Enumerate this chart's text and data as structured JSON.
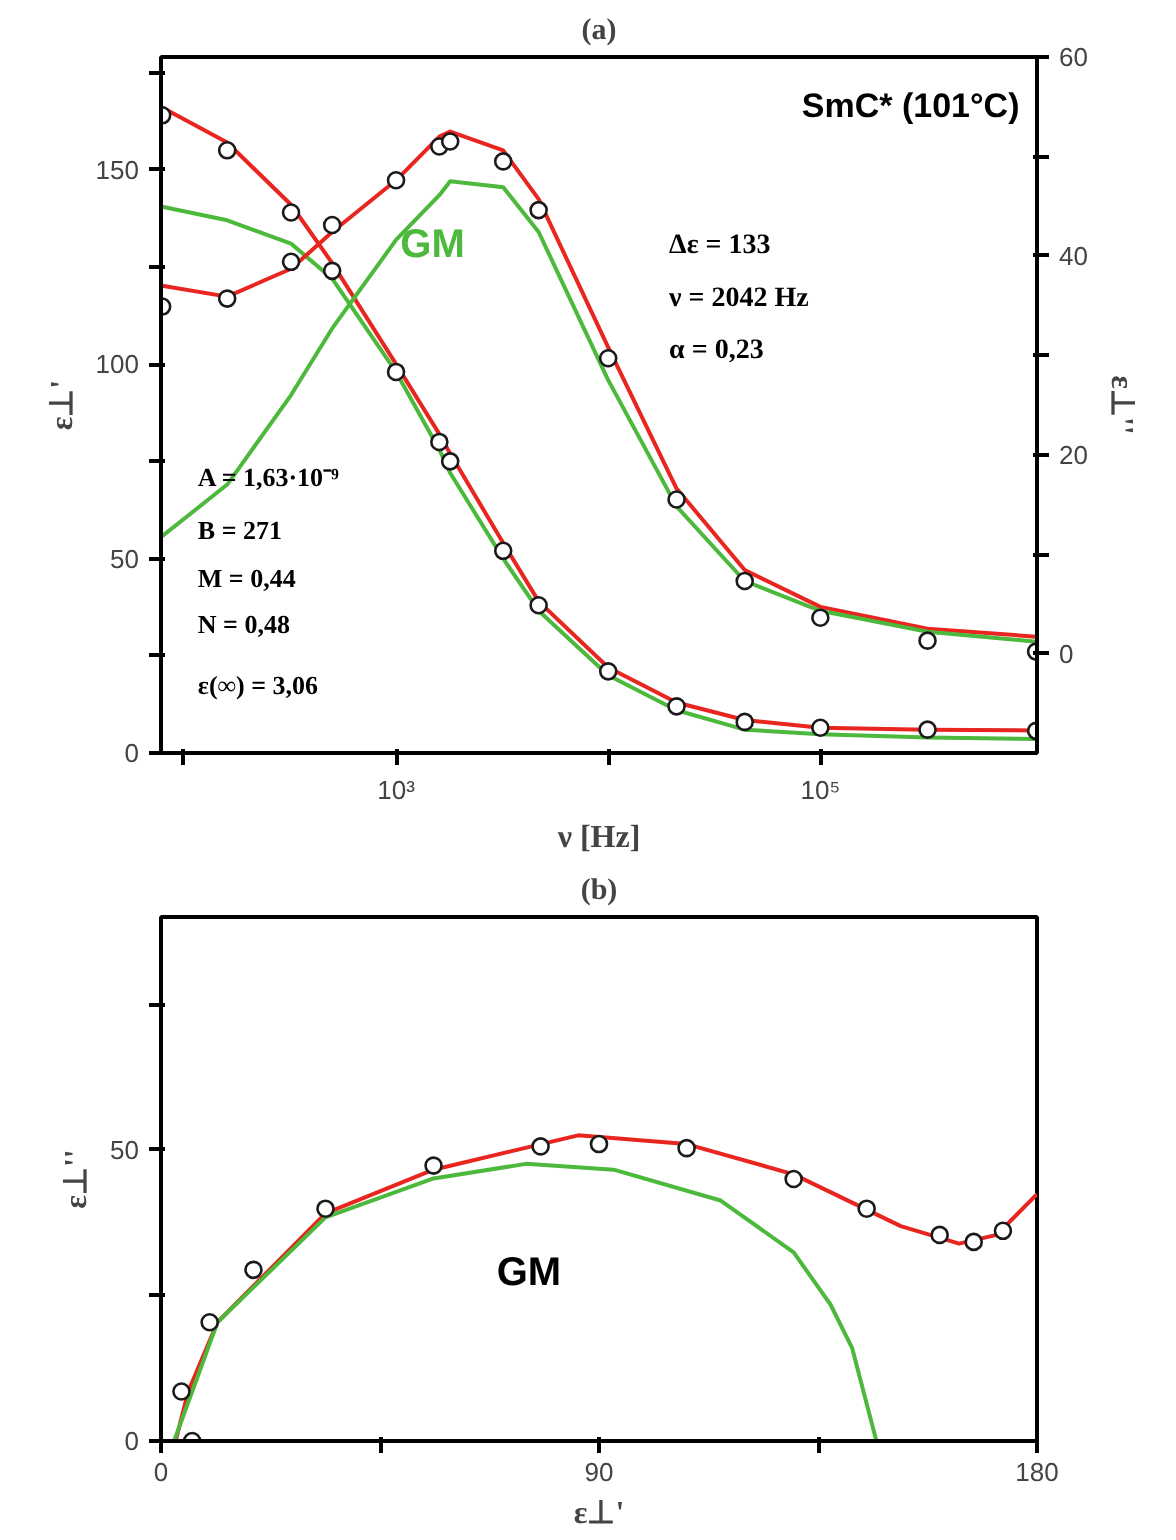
{
  "chart_data": [
    {
      "type": "line",
      "title": "(a)",
      "xlabel": "ν [Hz]",
      "ylabel": "ε⊥'",
      "y2label": "ε⊥''",
      "log": "x",
      "grid": false,
      "x": [
        79,
        160,
        320,
        500,
        1000,
        1600,
        1800,
        3200,
        4700,
        10000,
        21000,
        44000,
        100000,
        320000,
        1040000
      ],
      "xlim": [
        78,
        1050000
      ],
      "xticks": [
        {
          "value": 100,
          "label": null
        },
        {
          "value": 1000,
          "label": "10³"
        },
        {
          "value": 10000,
          "label": null
        },
        {
          "value": 100000,
          "label": "10⁵"
        }
      ],
      "ylim": [
        0,
        179
      ],
      "yticks": [
        0,
        {
          "value": 25,
          "label": null
        },
        50,
        {
          "value": 75,
          "label": null
        },
        100,
        {
          "value": 125,
          "label": null
        },
        150,
        {
          "value": 175,
          "label": null
        }
      ],
      "y2lim": [
        -10,
        60
      ],
      "y2ticks": [
        0,
        {
          "value": 10,
          "label": null
        },
        20,
        {
          "value": 30,
          "label": null
        },
        40,
        {
          "value": 50,
          "label": null
        },
        60
      ],
      "series": [
        {
          "type": "scatter",
          "marker": "circle",
          "color": "#1a1a1a",
          "values": [
            164,
            155,
            139,
            124,
            98,
            80,
            75,
            52,
            38,
            21,
            12,
            8,
            6.5,
            6,
            5.7
          ]
        },
        {
          "color": "#e8251f",
          "values": [
            166,
            157,
            141,
            126,
            100,
            82,
            77,
            54,
            39,
            22,
            13,
            8.5,
            6.5,
            6,
            5.8
          ]
        },
        {
          "color": "#4cb83c",
          "values": [
            140.5,
            137,
            131,
            122,
            98,
            78,
            72,
            50,
            36.6,
            20,
            11,
            6,
            4.8,
            4,
            3.6
          ]
        },
        {
          "type": "scatter",
          "marker": "circle",
          "axis": "y2",
          "color": "#1a1a1a",
          "values": [
            34.9,
            35.7,
            39.4,
            43.1,
            47.6,
            51,
            51.5,
            49.5,
            44.6,
            29.7,
            15.5,
            7.3,
            3.6,
            1.3,
            0.2
          ]
        },
        {
          "axis": "y2",
          "color": "#e8251f",
          "values": [
            37,
            35.9,
            38.7,
            42.4,
            47.6,
            52,
            52.5,
            50.6,
            45.7,
            30.8,
            16.6,
            8.4,
            4.7,
            2.5,
            1.7
          ]
        },
        {
          "axis": "y2",
          "color": "#4cb83c",
          "values": [
            11.8,
            17,
            26,
            32.7,
            41.6,
            46.1,
            47.5,
            46.9,
            42.4,
            27.5,
            14.8,
            7.3,
            4.3,
            2.2,
            1.2
          ]
        }
      ],
      "annotations": [
        "SmC* (101°C)",
        "Δε = 133",
        "ν = 2042 Hz",
        "α = 0,23",
        "A = 1,63·10⁻⁹",
        "B = 271",
        "M = 0,44",
        "N = 0,48",
        "ε(∞) =  3,06",
        "GM"
      ]
    },
    {
      "type": "line",
      "title": "(b)",
      "xlabel": "ε⊥'",
      "ylabel": "ε⊥''",
      "grid": false,
      "xlim": [
        0,
        180
      ],
      "xticks": [
        0,
        {
          "value": 45,
          "label": null
        },
        90,
        {
          "value": 135,
          "label": null
        },
        180
      ],
      "ylim": [
        0,
        90
      ],
      "yticks": [
        0,
        {
          "value": 25,
          "label": null
        },
        50,
        {
          "value": 75,
          "label": null
        }
      ],
      "series": [
        {
          "type": "scatter",
          "marker": "circle",
          "color": "#1a1a1a",
          "x": [
            6.4,
            4.2,
            10,
            19,
            33.8,
            56,
            78,
            90,
            108,
            130,
            145,
            160,
            167,
            173
          ],
          "values": [
            0,
            8.5,
            20.4,
            29.4,
            39.9,
            47.3,
            50.6,
            51,
            50.3,
            45,
            39.9,
            35.4,
            34.2,
            36.1
          ]
        },
        {
          "color": "#e8251f",
          "x": [
            3,
            5.6,
            11.6,
            33.8,
            56,
            85.7,
            108,
            130,
            152,
            164,
            171.7,
            180
          ],
          "values": [
            0,
            8.5,
            20.4,
            39.1,
            46.6,
            52.5,
            51,
            45.8,
            36.9,
            33.9,
            35.4,
            42.4
          ]
        },
        {
          "color": "#4cb83c",
          "x": [
            2.7,
            11.6,
            33.8,
            56,
            75,
            93,
            115,
            130,
            137.6,
            142,
            147
          ],
          "values": [
            0,
            20.4,
            38.4,
            45.1,
            47.6,
            46.6,
            41.3,
            32.4,
            23.4,
            16,
            0
          ]
        }
      ],
      "annotations": [
        "GM"
      ]
    }
  ]
}
